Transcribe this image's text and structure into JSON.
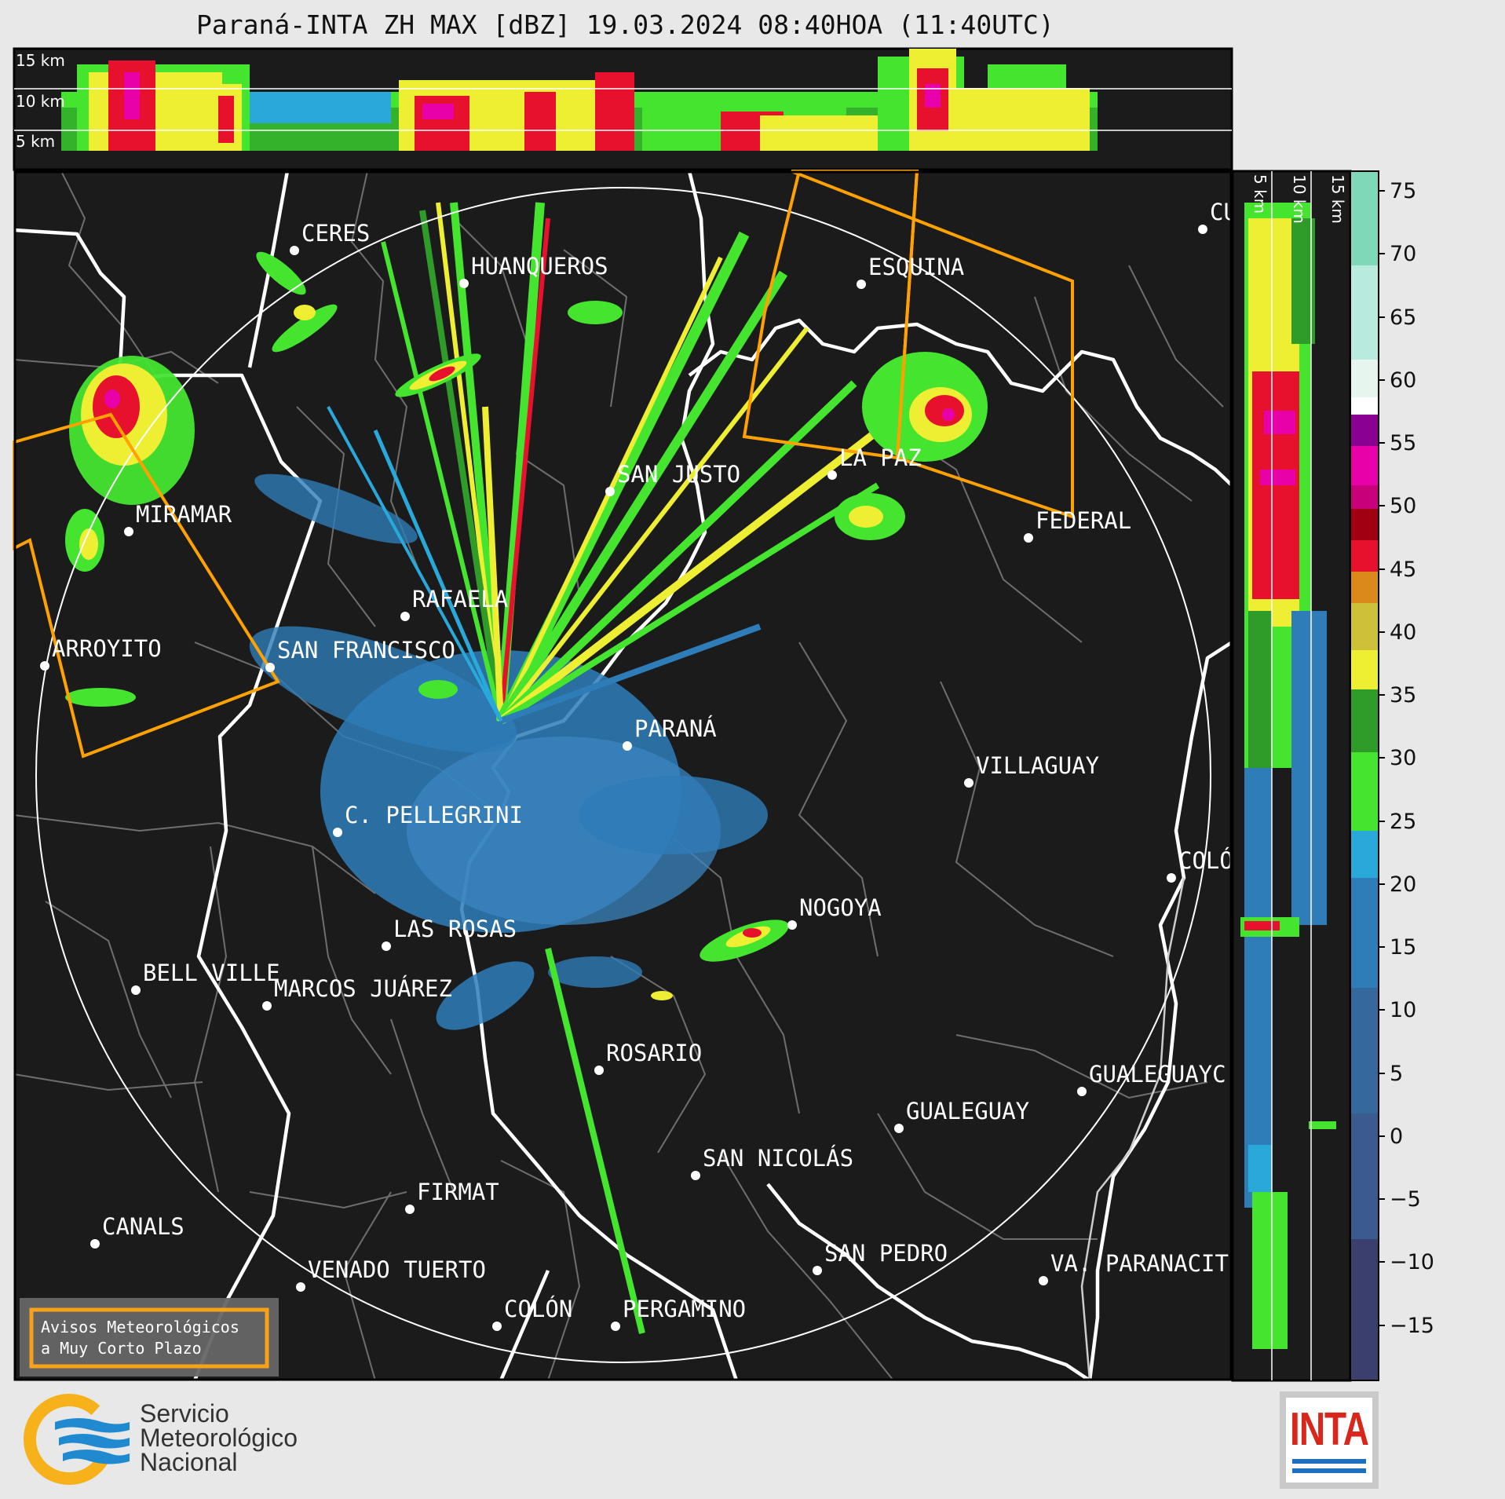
{
  "title": "Paraná-INTA ZH MAX [dBZ] 19.03.2024 08:40HOA (11:40UTC)",
  "cross_section_top": {
    "height_labels": [
      "15 km",
      "10 km",
      "5 km"
    ]
  },
  "cross_section_side": {
    "height_labels": [
      "5 km",
      "10 km",
      "15 km"
    ]
  },
  "cities": [
    "CERES",
    "HUANQUEROS",
    "ESQUINA",
    "CU",
    "SAN JUSTO",
    "LA PAZ",
    "MIRAMAR",
    "FEDERAL",
    "RAFAELA",
    "ARROYITO",
    "SAN FRANCISCO",
    "PARANÁ",
    "VILLAGUAY",
    "C. PELLEGRINI",
    "COLÓ",
    "NOGOYA",
    "LAS ROSAS",
    "BELL VILLE",
    "MARCOS JUÁREZ",
    "ROSARIO",
    "GUALEGUAYC",
    "GUALEGUAY",
    "SAN NICOLÁS",
    "FIRMAT",
    "CANALS",
    "SAN PEDRO",
    "VENADO TUERTO",
    "VA. PARANACIT",
    "COLÓN",
    "PERGAMINO"
  ],
  "warning_box": {
    "line1": "Avisos Meteorológicos",
    "line2": "a Muy Corto Plazo",
    "color": "#f7a21b"
  },
  "colorbar": {
    "ticks": [
      "75",
      "70",
      "65",
      "60",
      "55",
      "50",
      "45",
      "40",
      "35",
      "30",
      "25",
      "20",
      "15",
      "10",
      "5",
      "0",
      "−5",
      "−10",
      "−15"
    ],
    "unit": "dBZ",
    "colors": {
      "m15": "#3a3f6e",
      "m5": "#3b5a8e",
      "p5": "#2e7cb8",
      "p15": "#29a9d9",
      "p20": "#45e52f",
      "p25": "#2f9c2a",
      "p30": "#eeee33",
      "p35": "#cfc03a",
      "p40": "#d98a1a",
      "p45": "#e8112d",
      "p50": "#a00012",
      "p55": "#e800a8",
      "p58": "#8a0090",
      "p60": "#ffffff",
      "p70": "#b8eadd",
      "p75": "#7fd9b8"
    }
  },
  "logos": {
    "smn_line1": "Servicio",
    "smn_line2": "Meteorológico",
    "smn_line3": "Nacional",
    "inta": "INTA"
  },
  "colors": {
    "map_background": "#1b1b1b",
    "border_white": "#ffffff",
    "border_gray": "#6e6e6e",
    "warning_polygon": "#ffa200"
  }
}
